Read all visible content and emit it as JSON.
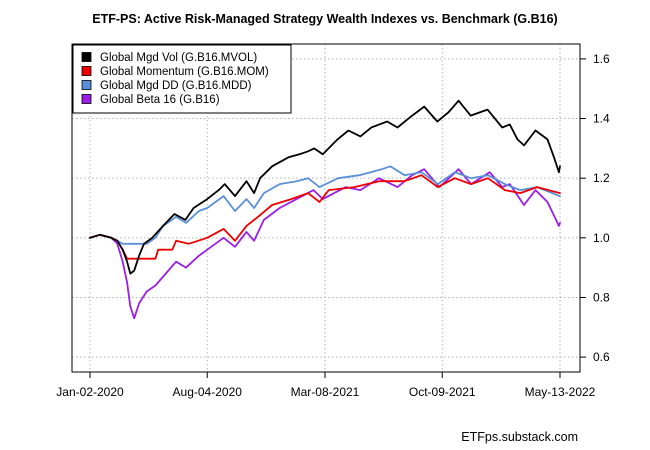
{
  "chart_data": {
    "type": "line",
    "title": "ETF-PS: Active Risk-Managed Strategy Wealth Indexes vs. Benchmark (G.B16)",
    "xlabel": "",
    "ylabel": "",
    "x_range": [
      "2020-01-02",
      "2022-05-13"
    ],
    "x_ticks": [
      "Jan-02-2020",
      "Aug-04-2020",
      "Mar-08-2021",
      "Oct-09-2021",
      "May-13-2022"
    ],
    "ylim": [
      0.55,
      1.65
    ],
    "y_ticks": [
      "0.6",
      "0.8",
      "1.0",
      "1.2",
      "1.4",
      "1.6"
    ],
    "y_axis_side": "right",
    "grid": "dotted",
    "legend_position": "top-left",
    "series": [
      {
        "name": "Global Mgd Vol (G.B16.MVOL)",
        "color": "#000000",
        "points": [
          [
            "2020-01-02",
            1.0
          ],
          [
            "2020-01-20",
            1.01
          ],
          [
            "2020-02-10",
            1.0
          ],
          [
            "2020-02-21",
            0.99
          ],
          [
            "2020-03-02",
            0.96
          ],
          [
            "2020-03-10",
            0.92
          ],
          [
            "2020-03-16",
            0.88
          ],
          [
            "2020-03-23",
            0.89
          ],
          [
            "2020-04-01",
            0.94
          ],
          [
            "2020-04-10",
            0.98
          ],
          [
            "2020-04-25",
            1.0
          ],
          [
            "2020-05-15",
            1.04
          ],
          [
            "2020-06-05",
            1.08
          ],
          [
            "2020-06-25",
            1.06
          ],
          [
            "2020-07-10",
            1.1
          ],
          [
            "2020-08-04",
            1.13
          ],
          [
            "2020-08-25",
            1.16
          ],
          [
            "2020-09-05",
            1.18
          ],
          [
            "2020-09-24",
            1.14
          ],
          [
            "2020-10-15",
            1.19
          ],
          [
            "2020-10-29",
            1.15
          ],
          [
            "2020-11-09",
            1.2
          ],
          [
            "2020-12-01",
            1.24
          ],
          [
            "2020-12-31",
            1.27
          ],
          [
            "2021-01-20",
            1.28
          ],
          [
            "2021-02-05",
            1.29
          ],
          [
            "2021-02-16",
            1.3
          ],
          [
            "2021-03-04",
            1.28
          ],
          [
            "2021-03-31",
            1.33
          ],
          [
            "2021-04-20",
            1.36
          ],
          [
            "2021-05-12",
            1.34
          ],
          [
            "2021-06-01",
            1.37
          ],
          [
            "2021-06-30",
            1.39
          ],
          [
            "2021-07-19",
            1.37
          ],
          [
            "2021-08-15",
            1.41
          ],
          [
            "2021-09-06",
            1.44
          ],
          [
            "2021-09-30",
            1.39
          ],
          [
            "2021-10-20",
            1.42
          ],
          [
            "2021-11-08",
            1.46
          ],
          [
            "2021-11-30",
            1.41
          ],
          [
            "2021-12-31",
            1.43
          ],
          [
            "2022-01-27",
            1.37
          ],
          [
            "2022-02-10",
            1.38
          ],
          [
            "2022-02-24",
            1.33
          ],
          [
            "2022-03-08",
            1.31
          ],
          [
            "2022-03-29",
            1.36
          ],
          [
            "2022-04-20",
            1.33
          ],
          [
            "2022-05-02",
            1.27
          ],
          [
            "2022-05-11",
            1.22
          ],
          [
            "2022-05-13",
            1.24
          ]
        ]
      },
      {
        "name": "Global Momentum (G.B16.MOM)",
        "color": "#ee0000",
        "points": [
          [
            "2020-01-02",
            1.0
          ],
          [
            "2020-01-20",
            1.01
          ],
          [
            "2020-02-10",
            1.0
          ],
          [
            "2020-02-21",
            0.99
          ],
          [
            "2020-03-02",
            0.96
          ],
          [
            "2020-03-10",
            0.93
          ],
          [
            "2020-04-10",
            0.93
          ],
          [
            "2020-05-01",
            0.93
          ],
          [
            "2020-05-06",
            0.96
          ],
          [
            "2020-06-01",
            0.96
          ],
          [
            "2020-06-08",
            0.99
          ],
          [
            "2020-07-01",
            0.98
          ],
          [
            "2020-08-04",
            1.0
          ],
          [
            "2020-09-03",
            1.03
          ],
          [
            "2020-09-24",
            0.99
          ],
          [
            "2020-10-15",
            1.04
          ],
          [
            "2020-11-05",
            1.07
          ],
          [
            "2020-12-01",
            1.11
          ],
          [
            "2021-01-05",
            1.13
          ],
          [
            "2021-02-05",
            1.15
          ],
          [
            "2021-02-26",
            1.12
          ],
          [
            "2021-03-15",
            1.16
          ],
          [
            "2021-05-01",
            1.17
          ],
          [
            "2021-06-15",
            1.19
          ],
          [
            "2021-08-01",
            1.19
          ],
          [
            "2021-09-01",
            1.21
          ],
          [
            "2021-10-01",
            1.17
          ],
          [
            "2021-11-01",
            1.2
          ],
          [
            "2021-12-01",
            1.18
          ],
          [
            "2022-01-01",
            1.2
          ],
          [
            "2022-02-01",
            1.16
          ],
          [
            "2022-03-01",
            1.15
          ],
          [
            "2022-04-01",
            1.17
          ],
          [
            "2022-05-13",
            1.15
          ]
        ]
      },
      {
        "name": "Global Mgd DD (G.B16.MDD)",
        "color": "#5b8fd8",
        "points": [
          [
            "2020-01-02",
            1.0
          ],
          [
            "2020-01-20",
            1.01
          ],
          [
            "2020-02-10",
            1.0
          ],
          [
            "2020-02-21",
            0.99
          ],
          [
            "2020-03-02",
            0.98
          ],
          [
            "2020-03-20",
            0.98
          ],
          [
            "2020-04-15",
            0.98
          ],
          [
            "2020-05-01",
            1.0
          ],
          [
            "2020-05-15",
            1.04
          ],
          [
            "2020-06-08",
            1.07
          ],
          [
            "2020-06-26",
            1.05
          ],
          [
            "2020-07-20",
            1.09
          ],
          [
            "2020-08-04",
            1.1
          ],
          [
            "2020-09-03",
            1.14
          ],
          [
            "2020-09-24",
            1.09
          ],
          [
            "2020-10-15",
            1.13
          ],
          [
            "2020-10-29",
            1.1
          ],
          [
            "2020-11-16",
            1.15
          ],
          [
            "2020-12-15",
            1.18
          ],
          [
            "2021-01-15",
            1.19
          ],
          [
            "2021-02-05",
            1.2
          ],
          [
            "2021-02-26",
            1.17
          ],
          [
            "2021-04-01",
            1.2
          ],
          [
            "2021-05-10",
            1.21
          ],
          [
            "2021-06-20",
            1.23
          ],
          [
            "2021-07-06",
            1.24
          ],
          [
            "2021-08-01",
            1.21
          ],
          [
            "2021-09-01",
            1.22
          ],
          [
            "2021-10-01",
            1.18
          ],
          [
            "2021-11-01",
            1.22
          ],
          [
            "2021-12-01",
            1.2
          ],
          [
            "2022-01-01",
            1.21
          ],
          [
            "2022-02-01",
            1.18
          ],
          [
            "2022-03-01",
            1.16
          ],
          [
            "2022-04-01",
            1.17
          ],
          [
            "2022-05-13",
            1.14
          ]
        ]
      },
      {
        "name": "Global Beta 16 (G.B16)",
        "color": "#9a1ee6",
        "points": [
          [
            "2020-01-02",
            1.0
          ],
          [
            "2020-01-20",
            1.01
          ],
          [
            "2020-02-10",
            1.0
          ],
          [
            "2020-02-21",
            0.98
          ],
          [
            "2020-03-02",
            0.92
          ],
          [
            "2020-03-10",
            0.85
          ],
          [
            "2020-03-16",
            0.77
          ],
          [
            "2020-03-23",
            0.73
          ],
          [
            "2020-04-01",
            0.78
          ],
          [
            "2020-04-15",
            0.82
          ],
          [
            "2020-05-01",
            0.84
          ],
          [
            "2020-05-15",
            0.87
          ],
          [
            "2020-06-08",
            0.92
          ],
          [
            "2020-06-26",
            0.9
          ],
          [
            "2020-07-20",
            0.94
          ],
          [
            "2020-08-04",
            0.96
          ],
          [
            "2020-09-03",
            1.0
          ],
          [
            "2020-09-24",
            0.97
          ],
          [
            "2020-10-15",
            1.02
          ],
          [
            "2020-10-29",
            0.99
          ],
          [
            "2020-11-16",
            1.06
          ],
          [
            "2020-12-15",
            1.1
          ],
          [
            "2021-01-15",
            1.13
          ],
          [
            "2021-02-15",
            1.16
          ],
          [
            "2021-03-04",
            1.13
          ],
          [
            "2021-04-15",
            1.17
          ],
          [
            "2021-05-12",
            1.16
          ],
          [
            "2021-06-15",
            1.2
          ],
          [
            "2021-07-19",
            1.17
          ],
          [
            "2021-08-15",
            1.21
          ],
          [
            "2021-09-06",
            1.23
          ],
          [
            "2021-10-04",
            1.17
          ],
          [
            "2021-11-08",
            1.23
          ],
          [
            "2021-12-01",
            1.18
          ],
          [
            "2022-01-04",
            1.22
          ],
          [
            "2022-01-27",
            1.17
          ],
          [
            "2022-02-10",
            1.18
          ],
          [
            "2022-03-08",
            1.11
          ],
          [
            "2022-03-29",
            1.16
          ],
          [
            "2022-04-20",
            1.12
          ],
          [
            "2022-05-11",
            1.04
          ],
          [
            "2022-05-13",
            1.05
          ]
        ]
      }
    ]
  },
  "footer": {
    "credit": "ETFps.substack.com"
  }
}
